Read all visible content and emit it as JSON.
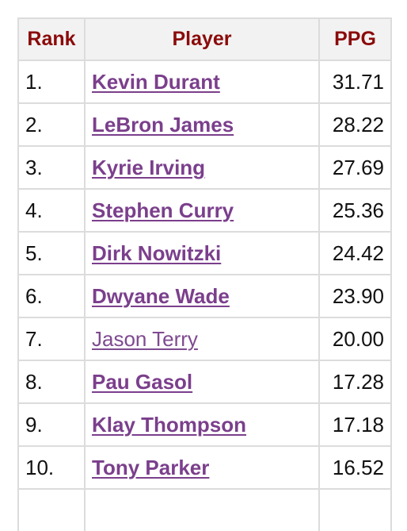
{
  "table": {
    "headers": {
      "rank": "Rank",
      "player": "Player",
      "ppg": "PPG"
    },
    "rows": [
      {
        "rank": "1.",
        "player": "Kevin Durant",
        "ppg": "31.71",
        "bold": true
      },
      {
        "rank": "2.",
        "player": "LeBron James",
        "ppg": "28.22",
        "bold": true
      },
      {
        "rank": "3.",
        "player": "Kyrie Irving",
        "ppg": "27.69",
        "bold": true
      },
      {
        "rank": "4.",
        "player": "Stephen Curry",
        "ppg": "25.36",
        "bold": true
      },
      {
        "rank": "5.",
        "player": "Dirk Nowitzki",
        "ppg": "24.42",
        "bold": true
      },
      {
        "rank": "6.",
        "player": "Dwyane Wade",
        "ppg": "23.90",
        "bold": true
      },
      {
        "rank": "7.",
        "player": "Jason Terry",
        "ppg": "20.00",
        "bold": false
      },
      {
        "rank": "8.",
        "player": "Pau Gasol",
        "ppg": "17.28",
        "bold": true
      },
      {
        "rank": "9.",
        "player": "Klay Thompson",
        "ppg": "17.18",
        "bold": true
      },
      {
        "rank": "10.",
        "player": "Tony Parker",
        "ppg": "16.52",
        "bold": true
      }
    ]
  },
  "colors": {
    "header_text": "#8b0a0a",
    "link": "#7b3f8c",
    "header_bg": "#f2f2f2",
    "border": "#dcdcdc"
  }
}
